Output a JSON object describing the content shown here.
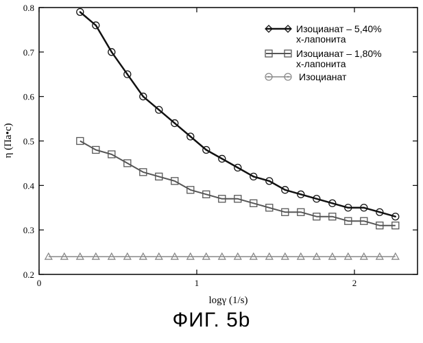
{
  "caption": "ФИГ. 5b",
  "chart_data": {
    "type": "line",
    "xlabel": "logγ (1/s)",
    "ylabel": "η (Па•с)",
    "xlim": [
      0,
      2.4
    ],
    "ylim": [
      0.2,
      0.8
    ],
    "xticks": [
      0,
      1,
      2
    ],
    "yticks": [
      0.2,
      0.3,
      0.4,
      0.5,
      0.6,
      0.7,
      0.8
    ],
    "x_tick_labels": [
      "0",
      "1",
      "2"
    ],
    "y_tick_labels": [
      "0.2",
      "0.3",
      "0.4",
      "0.5",
      "0.6",
      "0.7",
      "0.8"
    ],
    "legend_position": "top-right",
    "grid": false,
    "series": [
      {
        "name": "Изоцианат – 5,40% x-лапонита",
        "legend_lines": [
          "Изоцианат – 5,40%",
          "x-лапонита"
        ],
        "legend_marker": "diamond",
        "marker": "circle",
        "color": "#111111",
        "line_width": 2.5,
        "x": [
          0.26,
          0.36,
          0.46,
          0.56,
          0.66,
          0.76,
          0.86,
          0.96,
          1.06,
          1.16,
          1.26,
          1.36,
          1.46,
          1.56,
          1.66,
          1.76,
          1.86,
          1.96,
          2.06,
          2.16,
          2.26
        ],
        "y": [
          0.79,
          0.76,
          0.7,
          0.65,
          0.6,
          0.57,
          0.54,
          0.51,
          0.48,
          0.46,
          0.44,
          0.42,
          0.41,
          0.39,
          0.38,
          0.37,
          0.36,
          0.35,
          0.35,
          0.34,
          0.33
        ]
      },
      {
        "name": "Изоцианат – 1,80% x-лапонита",
        "legend_lines": [
          "Изоцианат – 1,80%",
          "x-лапонита"
        ],
        "legend_marker": "square",
        "marker": "square",
        "color": "#555555",
        "line_width": 2,
        "x": [
          0.26,
          0.36,
          0.46,
          0.56,
          0.66,
          0.76,
          0.86,
          0.96,
          1.06,
          1.16,
          1.26,
          1.36,
          1.46,
          1.56,
          1.66,
          1.76,
          1.86,
          1.96,
          2.06,
          2.16,
          2.26
        ],
        "y": [
          0.5,
          0.48,
          0.47,
          0.45,
          0.43,
          0.42,
          0.41,
          0.39,
          0.38,
          0.37,
          0.37,
          0.36,
          0.35,
          0.34,
          0.34,
          0.33,
          0.33,
          0.32,
          0.32,
          0.31,
          0.31
        ]
      },
      {
        "name": "Изоцианат",
        "legend_lines": [
          "Изоцианат"
        ],
        "legend_marker": "circle",
        "marker": "triangle",
        "color": "#888888",
        "line_width": 1.5,
        "x": [
          0.06,
          0.16,
          0.26,
          0.36,
          0.46,
          0.56,
          0.66,
          0.76,
          0.86,
          0.96,
          1.06,
          1.16,
          1.26,
          1.36,
          1.46,
          1.56,
          1.66,
          1.76,
          1.86,
          1.96,
          2.06,
          2.16,
          2.26
        ],
        "y": [
          0.24,
          0.24,
          0.24,
          0.24,
          0.24,
          0.24,
          0.24,
          0.24,
          0.24,
          0.24,
          0.24,
          0.24,
          0.24,
          0.24,
          0.24,
          0.24,
          0.24,
          0.24,
          0.24,
          0.24,
          0.24,
          0.24,
          0.24
        ]
      }
    ]
  }
}
